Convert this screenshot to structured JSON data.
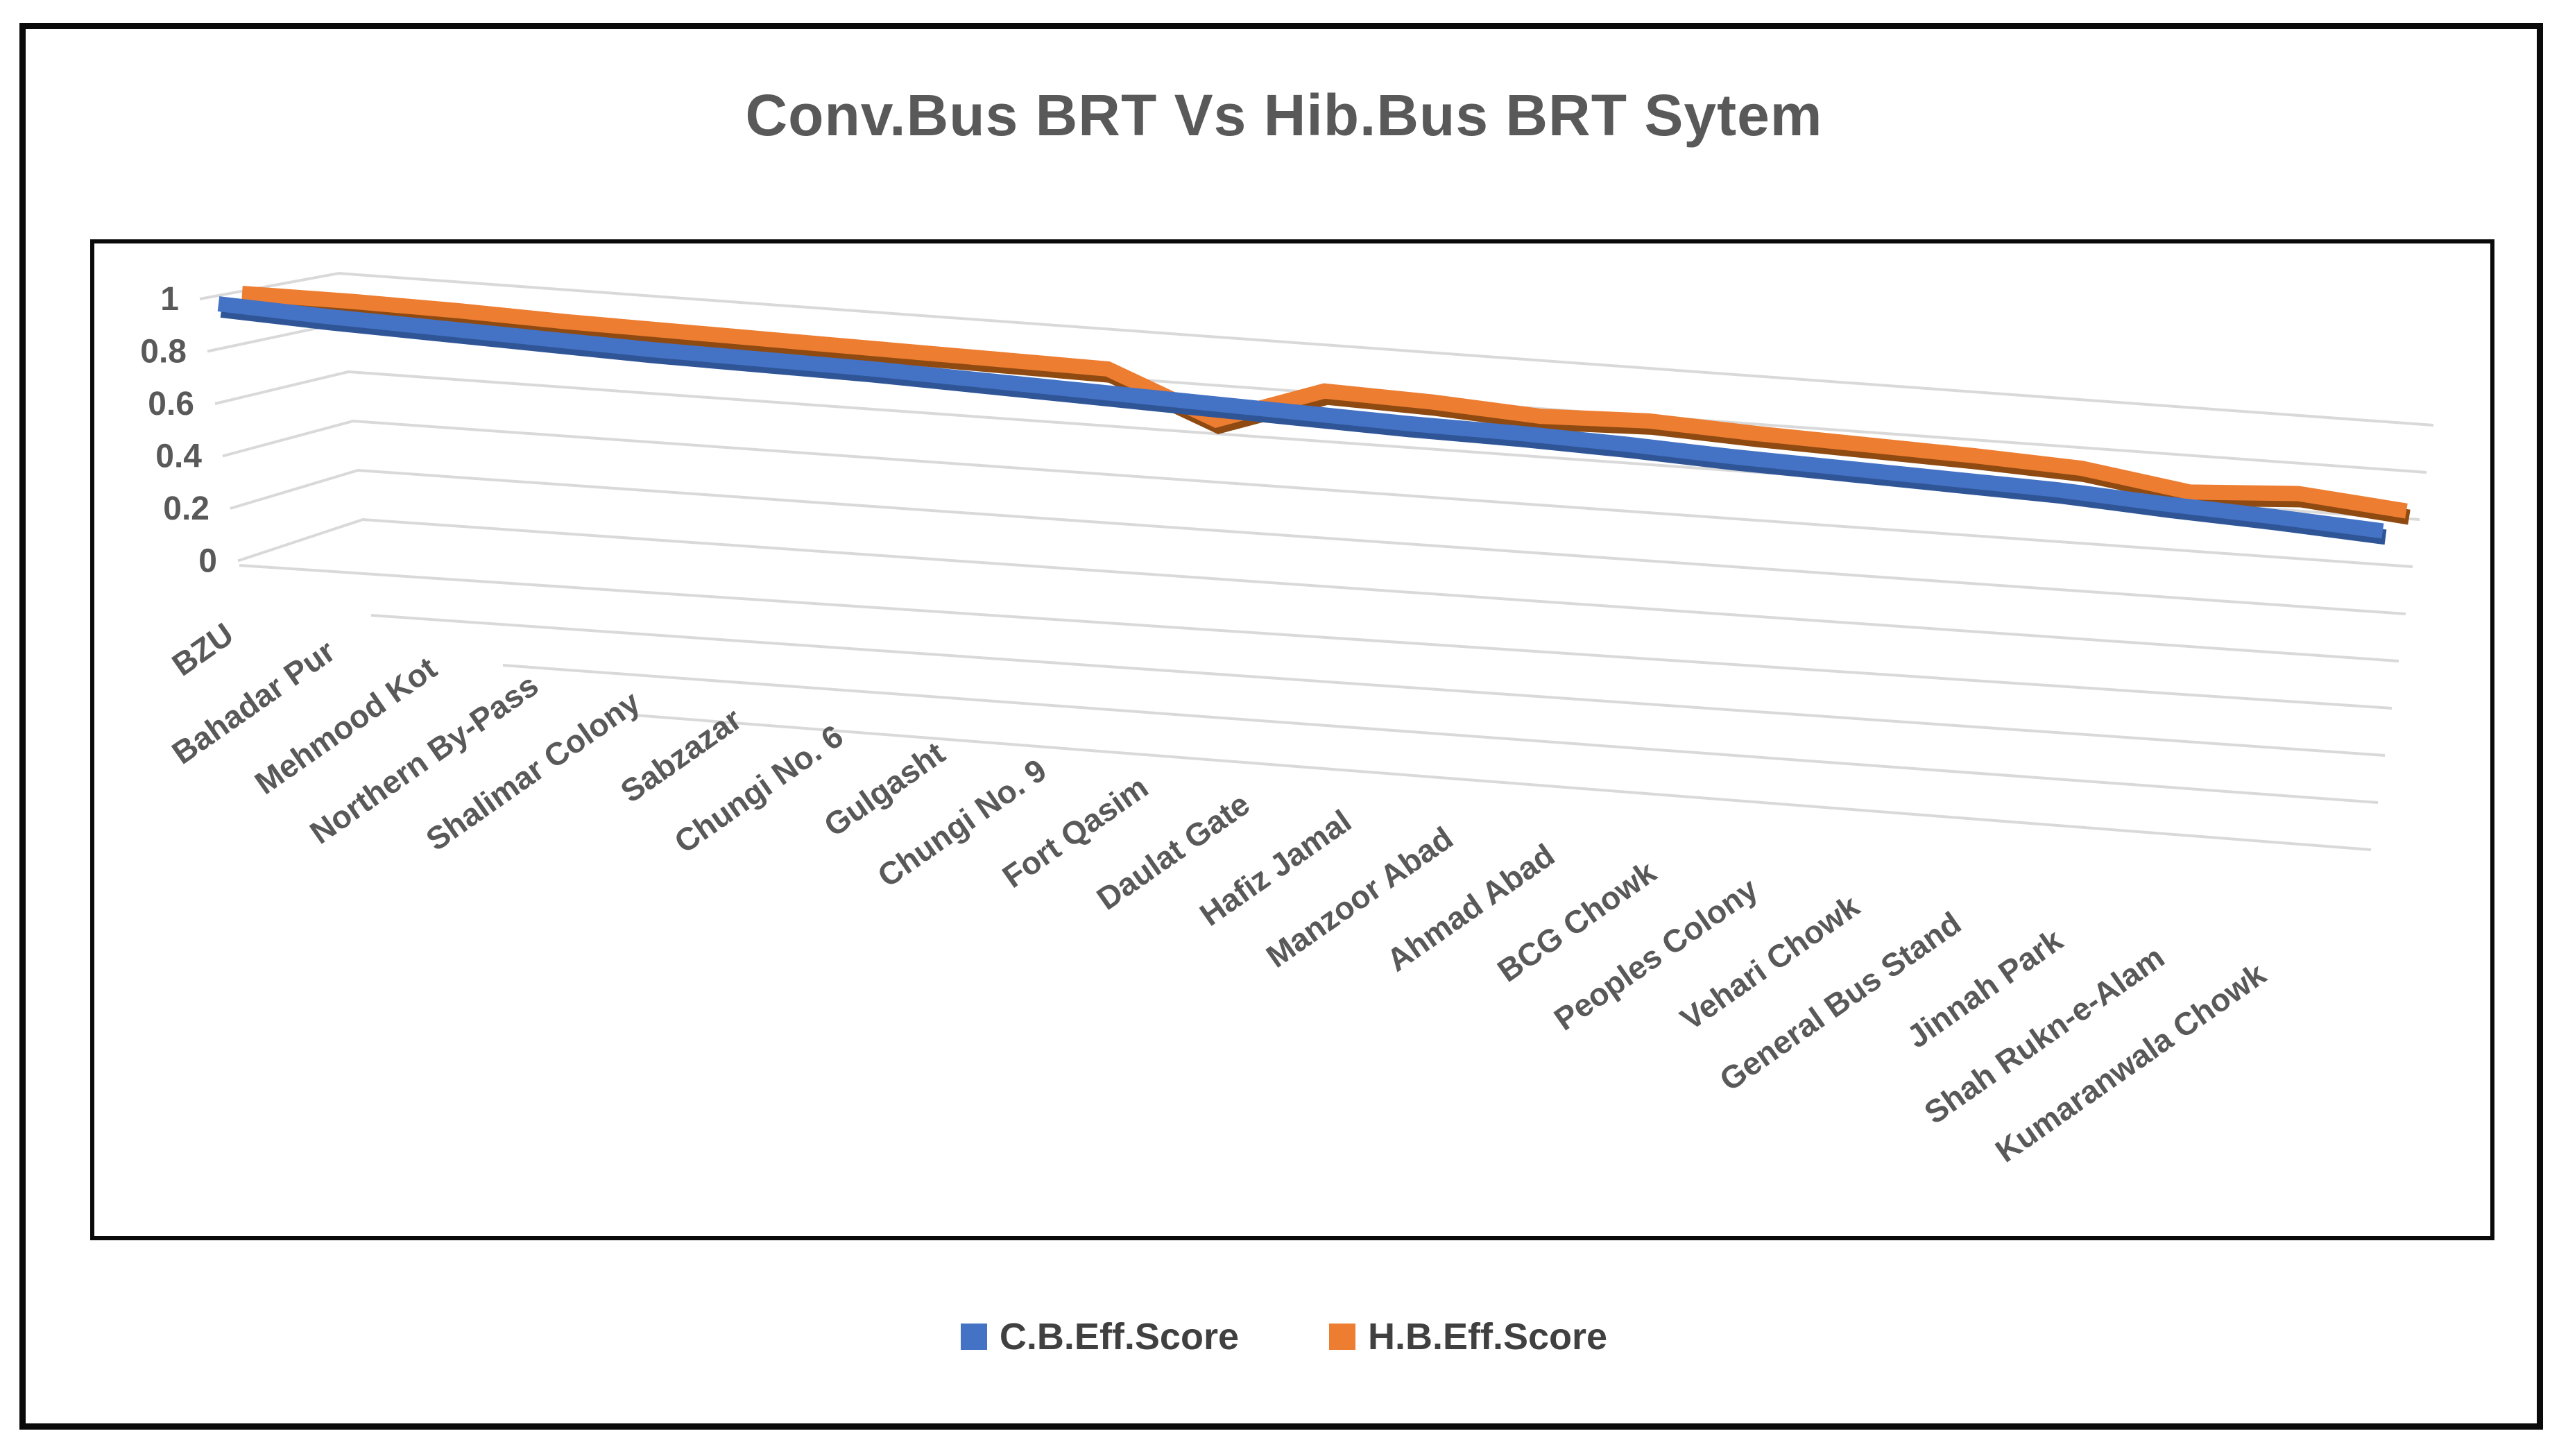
{
  "window": {
    "title": "Conv.Bus BRT Vs Hib.Bus BRT Sytem"
  },
  "legend": {
    "items": [
      {
        "label": "C.B.Eff.Score",
        "color": "#4472C4"
      },
      {
        "label": "H.B.Eff.Score",
        "color": "#ED7D31"
      }
    ]
  },
  "chart_data": {
    "type": "line",
    "style": "3d-ribbon",
    "title": "Conv.Bus BRT Vs Hib.Bus BRT Sytem",
    "xlabel": "",
    "ylabel": "",
    "ylim": [
      0,
      1
    ],
    "grid": true,
    "legend_position": "bottom",
    "y_tick_labels": [
      "1",
      "0.8",
      "0.6",
      "0.4",
      "0.2",
      "0"
    ],
    "categories": [
      "BZU",
      "Bahadar Pur",
      "Mehmood Kot",
      "Northern By-Pass",
      "Shalimar Colony",
      "Sabzazar",
      "Chungi No. 6",
      "Gulgasht",
      "Chungi No. 9",
      "Fort Qasim",
      "Daulat Gate",
      "Hafiz Jamal",
      "Manzoor Abad",
      "Ahmad Abad",
      "BCG Chowk",
      "Peoples Colony",
      "Vehari Chowk",
      "General Bus Stand",
      "Jinnah Park",
      "Shah Rukn-e-Alam",
      "Kumaranwala Chowk"
    ],
    "series": [
      {
        "name": "C.B.Eff.Score",
        "color": "#4472C4",
        "shadow_color": "#2F5597",
        "values": [
          1.0,
          0.97,
          0.95,
          0.93,
          0.91,
          0.9,
          0.89,
          0.87,
          0.85,
          0.83,
          0.81,
          0.79,
          0.78,
          0.76,
          0.73,
          0.71,
          0.69,
          0.67,
          0.63,
          0.6,
          0.56
        ]
      },
      {
        "name": "H.B.Eff.Score",
        "color": "#ED7D31",
        "shadow_color": "#8F4A12",
        "values": [
          1.0,
          1.0,
          0.99,
          0.97,
          0.96,
          0.95,
          0.94,
          0.93,
          0.92,
          0.65,
          0.88,
          0.86,
          0.82,
          0.84,
          0.81,
          0.79,
          0.77,
          0.74,
          0.64,
          0.68,
          0.62
        ]
      }
    ]
  }
}
